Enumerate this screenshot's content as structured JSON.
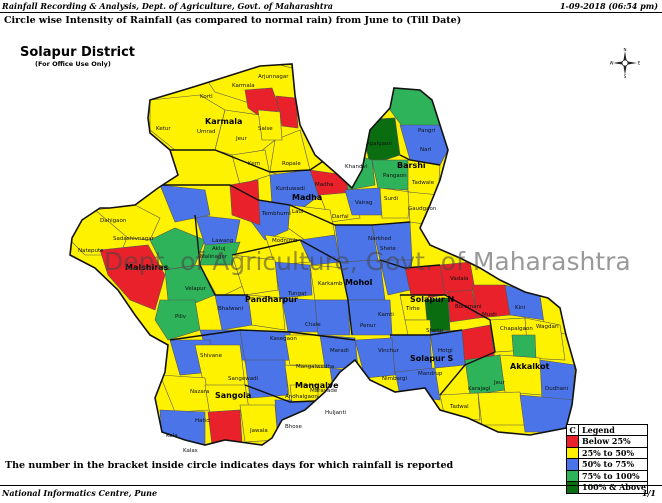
{
  "header": {
    "left": "Rainfall Recording & Analysis, Dept. of Agriculture, Govt. of Maharashtra",
    "right": "1-09-2018 (06:54 pm)"
  },
  "title": "Circle wise Intensity of Rainfall (as compared to normal rain) from June to  (Till Date)",
  "district": {
    "name": "Solapur District",
    "note": "(For Office Use Only)"
  },
  "watermark": "Dept. of Agriculture, Govt. of Maharashtra",
  "bracket_note": "The number in the bracket inside circle indicates days for which rainfall is reported",
  "footer": {
    "left": "National Informatics Centre, Pune",
    "right": "1/1"
  },
  "compass": {
    "n": "N",
    "s": "S",
    "e": "E",
    "w": "W"
  },
  "legend": {
    "col_header": "C",
    "title": "Legend",
    "items": [
      {
        "label": "Below 25%",
        "color": "#e8212a"
      },
      {
        "label": "25% to 50%",
        "color": "#fff200"
      },
      {
        "label": "50% to 75%",
        "color": "#4a74e8"
      },
      {
        "label": "75% to 100%",
        "color": "#2fb35a"
      },
      {
        "label": "100% & Above",
        "color": "#0a6e10"
      }
    ]
  },
  "talukas": [
    {
      "name": "Karmala"
    },
    {
      "name": "Madha"
    },
    {
      "name": "Barshi"
    },
    {
      "name": "Malshiras"
    },
    {
      "name": "Pandharpur"
    },
    {
      "name": "Mohol"
    },
    {
      "name": "Solapur N"
    },
    {
      "name": "Solapur S"
    },
    {
      "name": "Akkalkot"
    },
    {
      "name": "Sangola"
    },
    {
      "name": "Mangalve"
    }
  ],
  "circles": [
    "Arjunnagar",
    "Karmala",
    "Kortl",
    "Umrad",
    "Jeur",
    "Ketur",
    "Salse",
    "Kem",
    "Ropale",
    "Kurduwadi",
    "Tembhurni",
    "Madha",
    "Laul",
    "Modnimb",
    "Darfal",
    "Pangri",
    "Narl",
    "Agalgaon",
    "Khandvi",
    "Pangaon",
    "Tadwale",
    "Vairag",
    "Gaudgaon",
    "Surdi",
    "Dahigaon",
    "Natepute",
    "Sadashivnagar",
    "Malinagar",
    "Akluj",
    "Velapur",
    "Piliv",
    "Lawang",
    "Bhalwani",
    "Tungat",
    "Kasegaon",
    "Karkamb",
    "Chale",
    "Narkhed",
    "Penur",
    "Shete",
    "Kamti",
    "Tirhe",
    "Shelgi",
    "Vadala",
    "Boramani",
    "Musti",
    "Dudhani",
    "Kini",
    "Wagdari",
    "Jeur",
    "Chapalgaon",
    "Karajagi",
    "Tadwal",
    "Vinchur",
    "Nimbargi",
    "Mandrup",
    "Hotgi",
    "Shivane",
    "Sangewadi",
    "Nazara",
    "Hatid",
    "Kola",
    "Jawala",
    "Mangalwedha",
    "Andhalgaon",
    "Maravade",
    "Bhose",
    "Huljanti",
    "Maradi",
    "Kalas"
  ]
}
